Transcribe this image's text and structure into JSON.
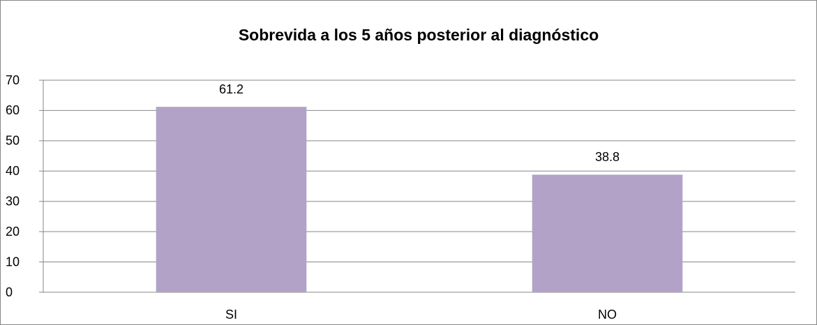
{
  "chart_data": {
    "type": "bar",
    "title": "Sobrevida a los 5 años posterior al diagnóstico",
    "categories": [
      "SI",
      "NO"
    ],
    "values": [
      61.2,
      38.8
    ],
    "color": "#b2a2c7",
    "ylim": [
      0,
      70
    ],
    "yticks": [
      0,
      10,
      20,
      30,
      40,
      50,
      60,
      70
    ],
    "grid": true
  }
}
